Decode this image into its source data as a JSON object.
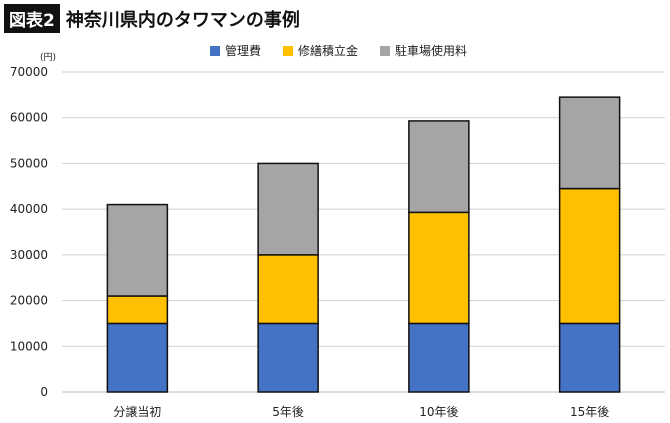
{
  "header": {
    "tag": "図表2",
    "title": "神奈川県内のタワマンの事例"
  },
  "chart_data": {
    "type": "bar",
    "stacked": true,
    "unit_label": "(円)",
    "categories": [
      "分譲当初",
      "5年後",
      "10年後",
      "15年後"
    ],
    "series": [
      {
        "name": "管理費",
        "color": "#4472C4",
        "values": [
          15000,
          15000,
          15000,
          15000
        ]
      },
      {
        "name": "修繕積立金",
        "color": "#FFC000",
        "values": [
          6000,
          15000,
          24300,
          29500
        ]
      },
      {
        "name": "駐車場使用料",
        "color": "#A5A5A5",
        "values": [
          20000,
          20000,
          20000,
          20000
        ]
      }
    ],
    "ylim": [
      0,
      70000
    ],
    "yticks": [
      0,
      10000,
      20000,
      30000,
      40000,
      50000,
      60000,
      70000
    ],
    "grid": true,
    "legend": "top"
  }
}
